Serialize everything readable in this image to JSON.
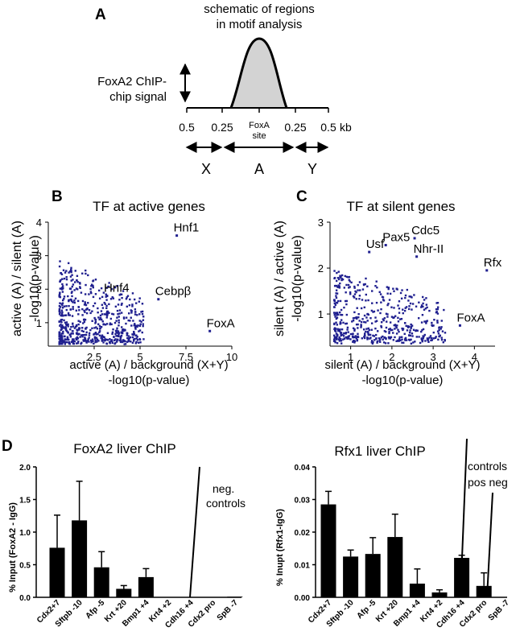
{
  "panels": {
    "A": {
      "letter": "A",
      "title_line1": "schematic of regions",
      "title_line2": "in motif analysis",
      "signal_label_line1": "FoxA2 ChIP-",
      "signal_label_line2": "chip signal",
      "axis_ticks": [
        "0.5",
        "0.25",
        "0.25",
        "0.5"
      ],
      "axis_unit": "kb",
      "site_label_line1": "FoxA",
      "site_label_line2": "site",
      "regions": [
        "X",
        "A",
        "Y"
      ]
    },
    "B": {
      "letter": "B"
    },
    "C": {
      "letter": "C"
    },
    "D": {
      "letter": "D"
    }
  },
  "chart_data": [
    {
      "type": "scatter",
      "title": "TF at active genes",
      "xlabel_line1": "active (A) / background (X+Y)",
      "xlabel_line2": "-log10(p-value)",
      "ylabel_line1": "active (A) / silent (A)",
      "ylabel_line2": "-log10(p-value)",
      "xlim": [
        0,
        10
      ],
      "ylim": [
        0.3,
        4
      ],
      "xticks": [
        "2.5",
        "5",
        "7.5",
        "10"
      ],
      "yticks": [
        "1",
        "2",
        "3",
        "4"
      ],
      "labeled_points": [
        {
          "label": "Hnf1",
          "x": 7.0,
          "y": 3.6
        },
        {
          "label": "Hnf4",
          "x": 3.2,
          "y": 1.8
        },
        {
          "label": "Cebpβ",
          "x": 6.0,
          "y": 1.7
        },
        {
          "label": "FoxA",
          "x": 8.8,
          "y": 0.75
        }
      ],
      "point_color": "#1f1f8f"
    },
    {
      "type": "scatter",
      "title": "TF at silent genes",
      "xlabel_line1": "silent (A) / background (X+Y)",
      "xlabel_line2": "-log10(p-value)",
      "ylabel_line1": "silent (A) / active (A)",
      "ylabel_line2": "-log10(p-value)",
      "xlim": [
        0.5,
        4.5
      ],
      "ylim": [
        0.3,
        3
      ],
      "xticks": [
        "1",
        "2",
        "3",
        "4"
      ],
      "yticks": [
        "1",
        "2",
        "3"
      ],
      "labeled_points": [
        {
          "label": "Usf",
          "x": 1.45,
          "y": 2.35
        },
        {
          "label": "Pax5",
          "x": 1.85,
          "y": 2.5
        },
        {
          "label": "Cdc5",
          "x": 2.55,
          "y": 2.65
        },
        {
          "label": "Nhr-II",
          "x": 2.6,
          "y": 2.25
        },
        {
          "label": "Rfx",
          "x": 4.3,
          "y": 1.95
        },
        {
          "label": "FoxA",
          "x": 3.65,
          "y": 0.75
        }
      ],
      "point_color": "#1f1f8f"
    },
    {
      "type": "bar",
      "title": "FoxA2 liver ChIP",
      "ylabel": "% Input (FoxA2 - IgG)",
      "ylim": [
        0,
        2.0
      ],
      "yticks": [
        "0.0",
        "0.5",
        "1.0",
        "1.5",
        "2.0"
      ],
      "categories": [
        "Cdx2+7",
        "Sftpb -10",
        "Afp -5",
        "Krt +20",
        "Bmp1 +4",
        "Krt4 +2",
        "Cdh16 +4",
        "Cdx2 pro",
        "SpB -7"
      ],
      "values": [
        0.76,
        1.18,
        0.46,
        0.13,
        0.31,
        0.0,
        0.0,
        0.0,
        0.01
      ],
      "errors": [
        0.5,
        0.6,
        0.24,
        0.05,
        0.13,
        0.0,
        0.0,
        0.0,
        0.0
      ],
      "annotation_line1": "neg.",
      "annotation_line2": "controls"
    },
    {
      "type": "bar",
      "title": "Rfx1 liver ChIP",
      "ylabel": "% Inupt (Rfx1-IgG)",
      "ylim": [
        0,
        0.04
      ],
      "yticks": [
        "0.00",
        "0.01",
        "0.02",
        "0.03",
        "0.04"
      ],
      "categories": [
        "Cdx2+7",
        "Sftpb -10",
        "Afp -5",
        "Krt +20",
        "Bmp1 +4",
        "Krt4 +2",
        "Cdh16 +4",
        "Cdx2 pro",
        "SpB -7"
      ],
      "values": [
        0.0285,
        0.0125,
        0.0133,
        0.0185,
        0.0042,
        0.0015,
        0.0121,
        0.0035,
        0.0
      ],
      "errors": [
        0.004,
        0.002,
        0.005,
        0.007,
        0.0045,
        0.0008,
        0.0008,
        0.004,
        0.0
      ],
      "annotation_line1": "controls",
      "annotation_line2": "pos neg"
    }
  ]
}
